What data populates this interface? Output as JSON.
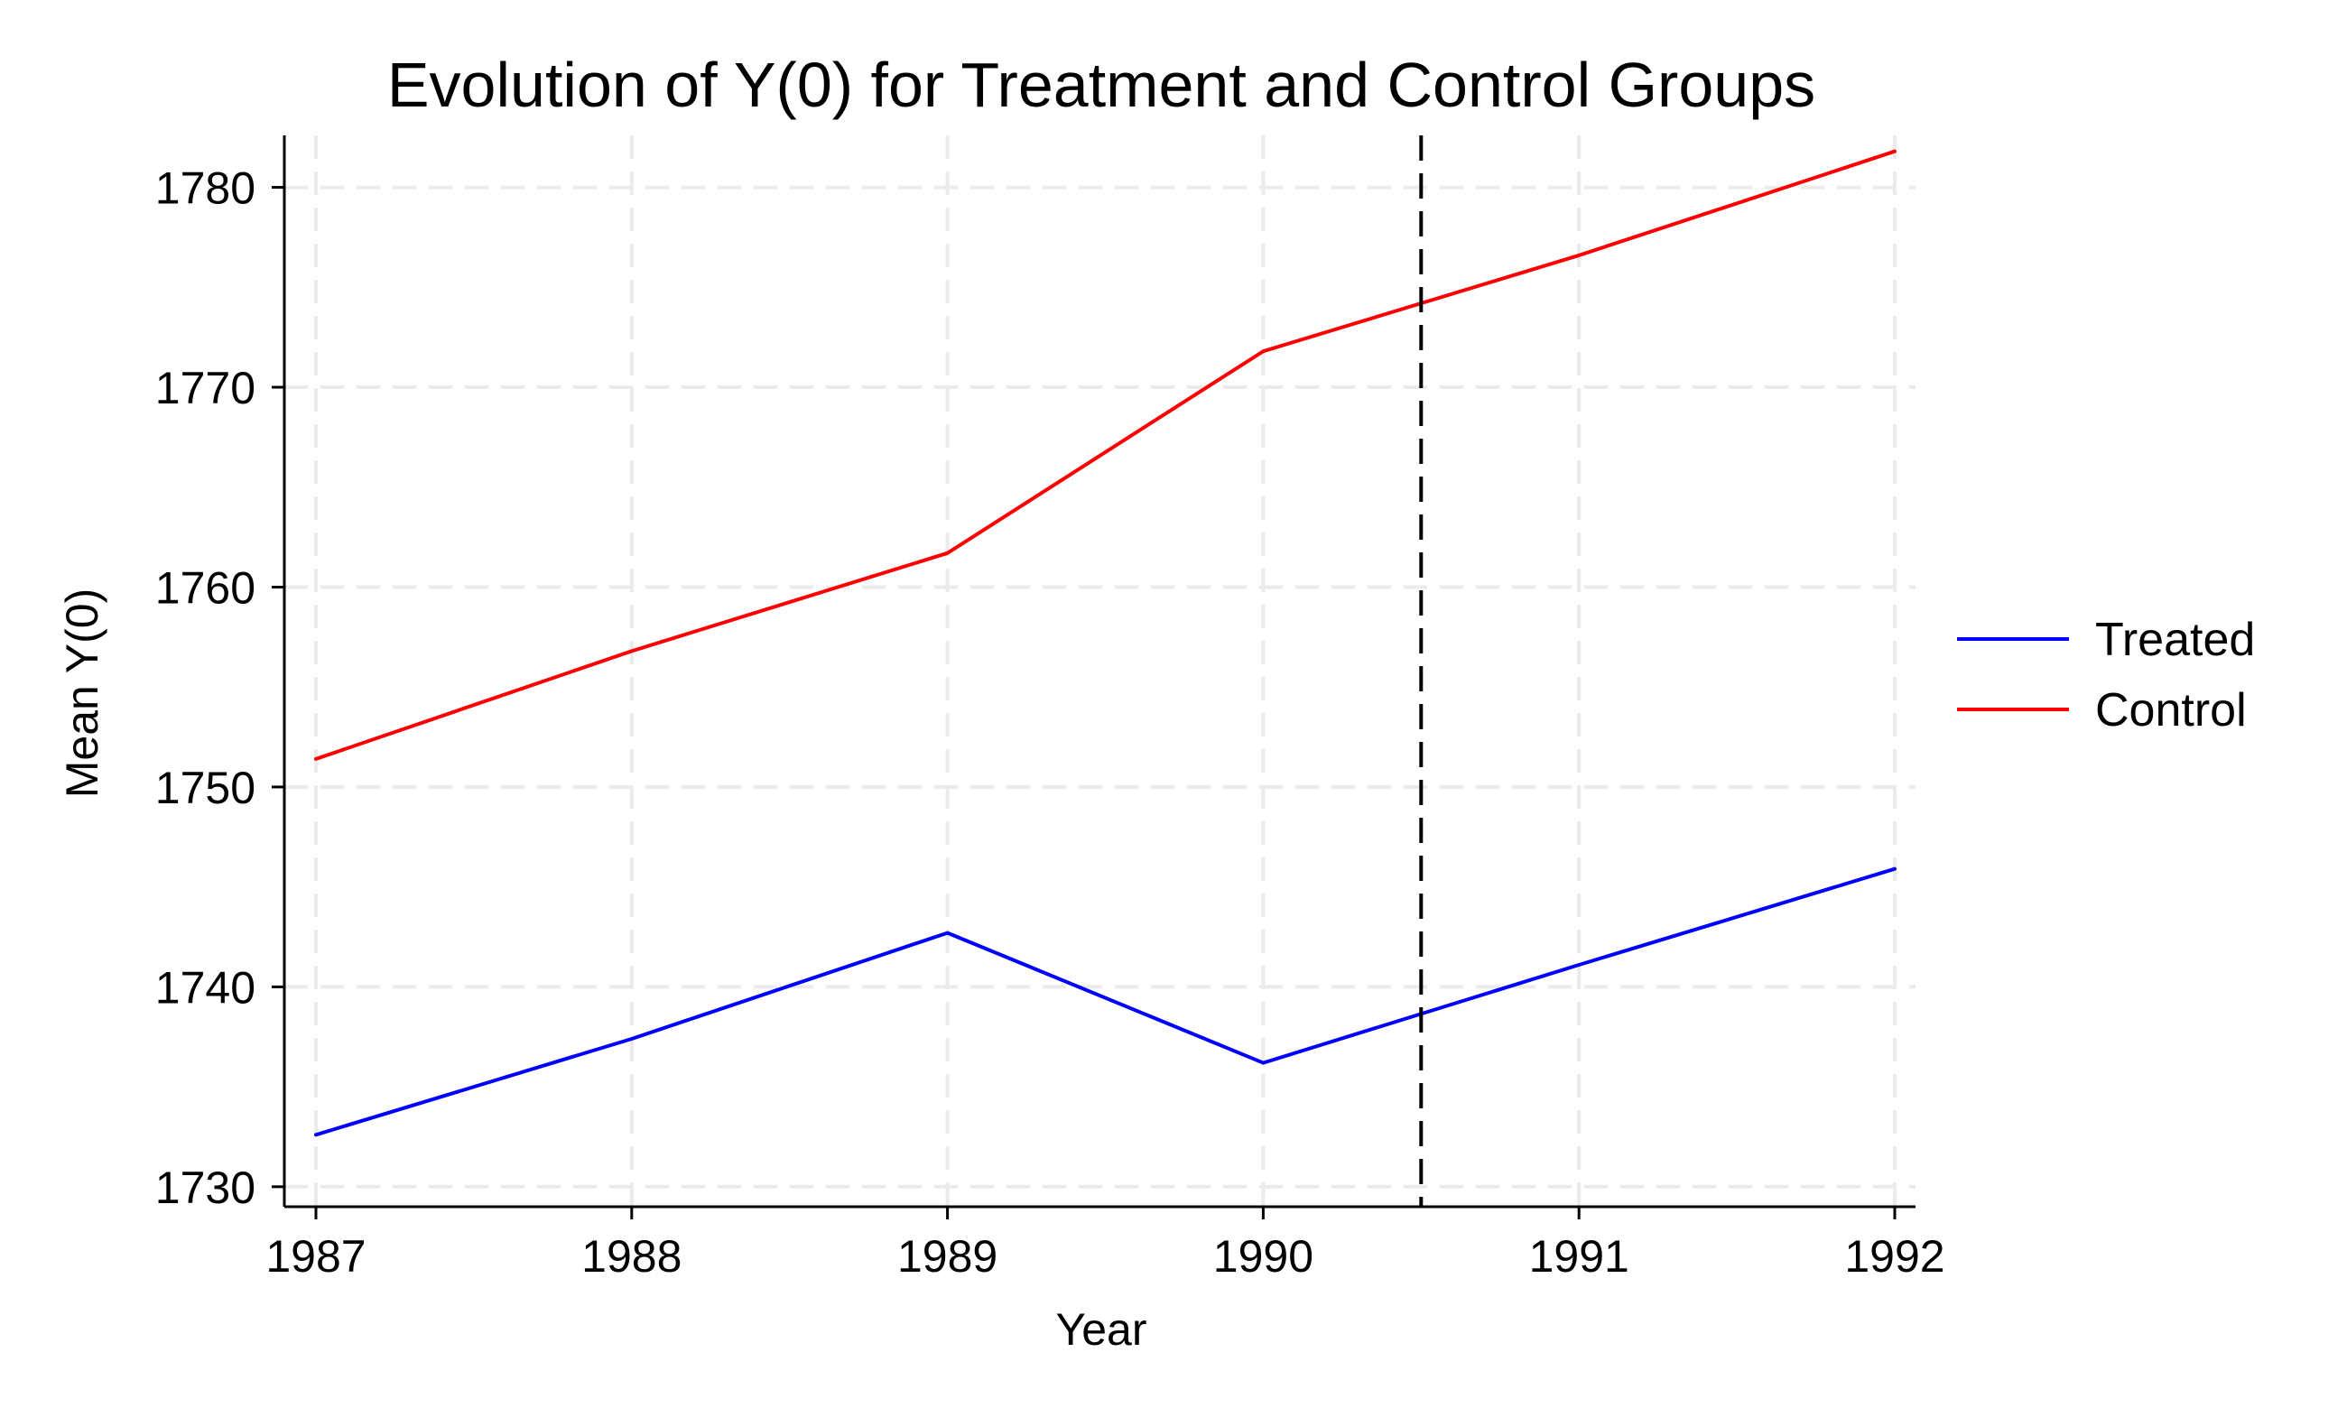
{
  "chart_data": {
    "type": "line",
    "title": "Evolution of Y(0) for Treatment and Control Groups",
    "xlabel": "Year",
    "ylabel": "Mean Y(0)",
    "x": [
      1987,
      1988,
      1989,
      1990,
      1991,
      1992
    ],
    "xticks": [
      "1987",
      "1988",
      "1989",
      "1990",
      "1991",
      "1992"
    ],
    "yticks": [
      1730,
      1740,
      1750,
      1760,
      1770,
      1780
    ],
    "xlim": [
      1987,
      1992
    ],
    "ylim": [
      1729,
      1782.6
    ],
    "grid": true,
    "legend_position": "right",
    "vertical_line": {
      "x": 1990.5,
      "style": "dashed",
      "color": "#000000"
    },
    "series": [
      {
        "name": "Treated",
        "color": "#0000ff",
        "values": [
          1732.6,
          1737.4,
          1742.7,
          1736.2,
          1741.1,
          1745.9
        ]
      },
      {
        "name": "Control",
        "color": "#ff0000",
        "values": [
          1751.4,
          1756.8,
          1761.7,
          1771.8,
          1776.6,
          1781.8
        ]
      }
    ]
  }
}
